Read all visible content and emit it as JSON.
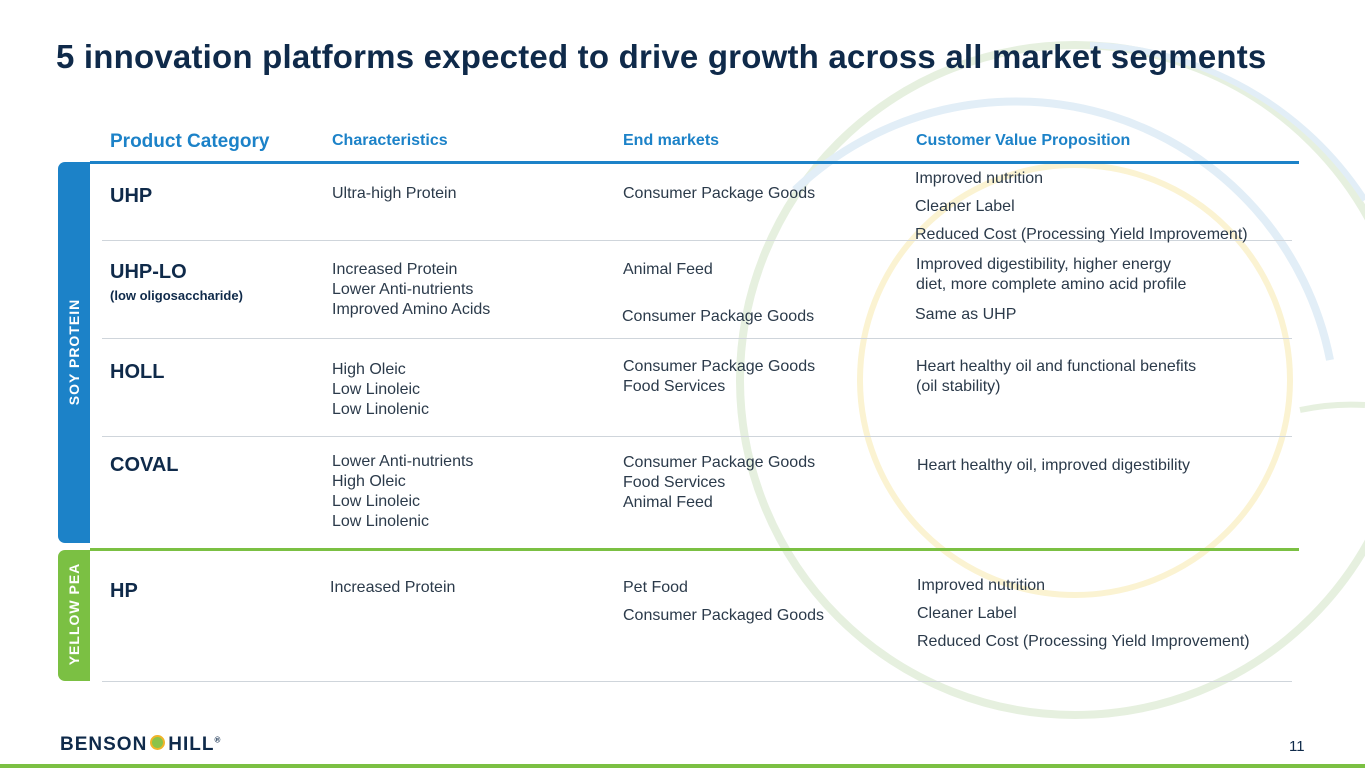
{
  "title": "5 innovation platforms expected to drive growth across all market segments",
  "headers": {
    "product_category": "Product Category",
    "characteristics": "Characteristics",
    "end_markets": "End markets",
    "customer_value": "Customer Value Proposition"
  },
  "bands": {
    "soy": "SOY PROTEIN",
    "pea": "YELLOW PEA"
  },
  "rows": [
    {
      "category": "UHP",
      "characteristics": [
        "Ultra-high Protein"
      ],
      "markets": [
        "Consumer Package Goods"
      ],
      "value": [
        "Improved nutrition",
        "Cleaner Label",
        "Reduced Cost (Processing Yield Improvement)"
      ]
    },
    {
      "category": "UHP-LO",
      "subtitle": "(low oligosaccharide)",
      "characteristics": [
        "Increased Protein",
        "Lower Anti-nutrients",
        "Improved Amino Acids"
      ],
      "markets": [
        "Animal Feed",
        "Consumer Package Goods"
      ],
      "value": [
        "Improved digestibility, higher energy",
        "diet, more complete amino acid profile",
        "Same as UHP"
      ]
    },
    {
      "category": "HOLL",
      "characteristics": [
        "High Oleic",
        "Low Linoleic",
        "Low Linolenic"
      ],
      "markets": [
        "Consumer Package Goods",
        "Food Services"
      ],
      "value": [
        "Heart healthy oil and functional benefits",
        "(oil stability)"
      ]
    },
    {
      "category": "COVAL",
      "characteristics": [
        "Lower Anti-nutrients",
        "High Oleic",
        "Low Linoleic",
        "Low Linolenic"
      ],
      "markets": [
        "Consumer Package Goods",
        "Food Services",
        "Animal Feed"
      ],
      "value": [
        "Heart healthy oil, improved digestibility"
      ]
    },
    {
      "category": "HP",
      "characteristics": [
        "Increased Protein"
      ],
      "markets": [
        "Pet Food",
        "Consumer Packaged Goods"
      ],
      "value": [
        "Improved nutrition",
        "Cleaner Label",
        "Reduced Cost (Processing Yield Improvement)"
      ]
    }
  ],
  "footer": {
    "logo_left": "BENSON",
    "logo_right": "HILL",
    "logo_mark": "®",
    "page_number": "11"
  },
  "colors": {
    "title": "#0f2a4a",
    "accent_blue": "#1c82c8",
    "accent_green": "#7bc043"
  }
}
